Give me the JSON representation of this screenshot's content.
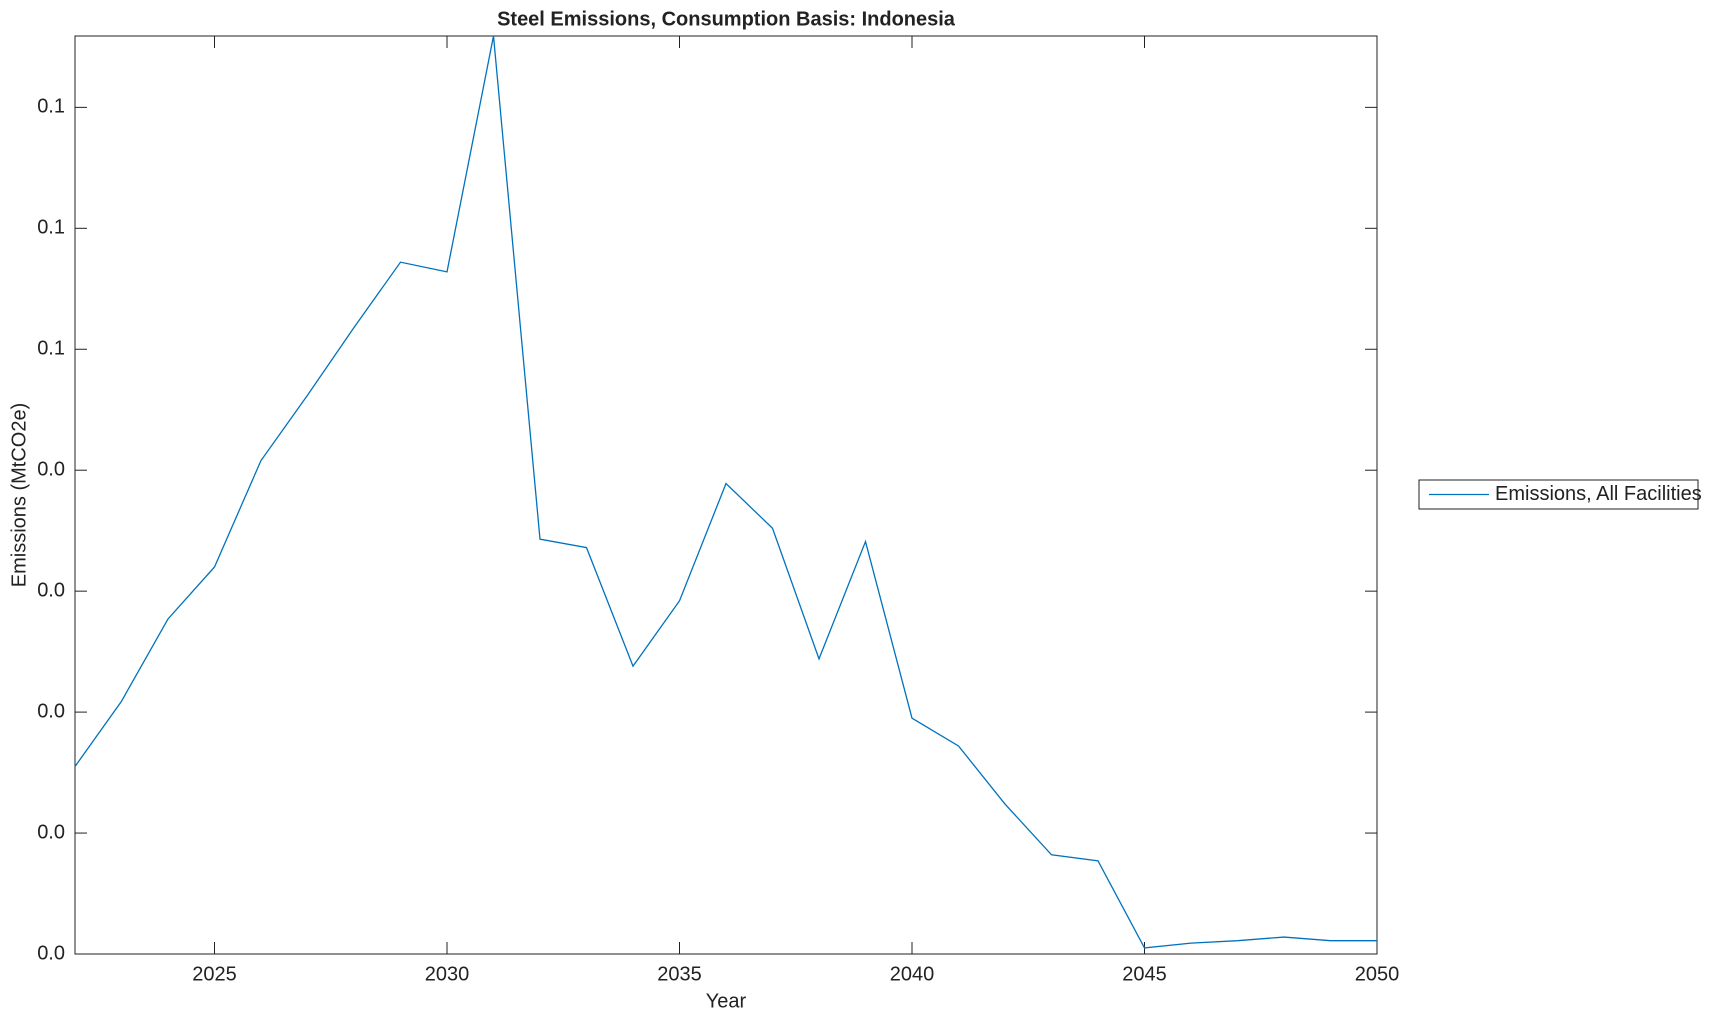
{
  "chart_data": {
    "type": "line",
    "title": "Steel Emissions, Consumption Basis: Indonesia",
    "x_label": "Year",
    "y_label": "Emissions (MtCO2e)",
    "x": [
      2022,
      2023,
      2024,
      2025,
      2026,
      2027,
      2028,
      2029,
      2030,
      2031,
      2032,
      2033,
      2034,
      2035,
      2036,
      2037,
      2038,
      2039,
      2040,
      2041,
      2042,
      2043,
      2044,
      2045,
      2046,
      2047,
      2048,
      2049,
      2050
    ],
    "series": [
      {
        "name": "Emissions, All Facilities",
        "color": "#0072bd",
        "values": [
          0.0155,
          0.0209,
          0.0277,
          0.032,
          0.0408,
          0.0462,
          0.0518,
          0.0572,
          0.0564,
          0.0759,
          0.0343,
          0.0336,
          0.0238,
          0.0292,
          0.0389,
          0.0352,
          0.0244,
          0.0341,
          0.0195,
          0.0172,
          0.0124,
          0.0082,
          0.0077,
          0.0005,
          0.0009,
          0.0011,
          0.0014,
          0.0011,
          0.0011
        ]
      }
    ],
    "xlim": [
      2022,
      2050
    ],
    "xticks": [
      2025,
      2030,
      2035,
      2040,
      2045,
      2050
    ],
    "ylim": [
      0,
      0.0759
    ],
    "yticks": [
      {
        "value": 0,
        "label": "0.0"
      },
      {
        "value": 0.01,
        "label": "0.0"
      },
      {
        "value": 0.02,
        "label": "0.0"
      },
      {
        "value": 0.03,
        "label": "0.0"
      },
      {
        "value": 0.04,
        "label": "0.0"
      },
      {
        "value": 0.05,
        "label": "0.1"
      },
      {
        "value": 0.06,
        "label": "0.1"
      },
      {
        "value": 0.07,
        "label": "0.1"
      }
    ],
    "grid": false,
    "legend": "right"
  }
}
